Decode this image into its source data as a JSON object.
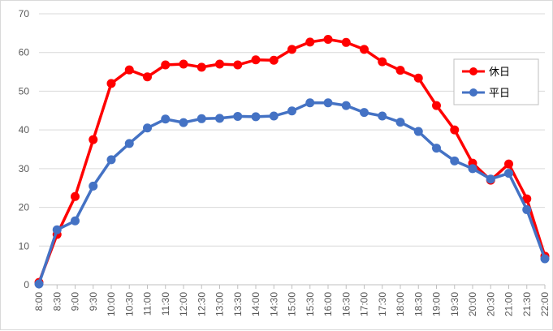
{
  "chart_data": {
    "type": "line",
    "title": "",
    "xlabel": "",
    "ylabel": "",
    "ylim": [
      0,
      70
    ],
    "yticks": [
      0,
      10,
      20,
      30,
      40,
      50,
      60,
      70
    ],
    "grid": "horizontal",
    "legend_position": "right",
    "x": [
      "8:00",
      "8:30",
      "9:00",
      "9:30",
      "10:00",
      "10:30",
      "11:00",
      "11:30",
      "12:00",
      "12:30",
      "13:00",
      "13:30",
      "14:00",
      "14:30",
      "15:00",
      "15:30",
      "16:00",
      "16:30",
      "17:00",
      "17:30",
      "18:00",
      "18:30",
      "19:00",
      "19:30",
      "20:00",
      "20:30",
      "21:00",
      "21:30",
      "22:00"
    ],
    "series": [
      {
        "name": "休日",
        "color": "#ff0000",
        "values": [
          0.6,
          13.0,
          22.8,
          37.5,
          52.0,
          55.5,
          53.7,
          56.8,
          57.0,
          56.2,
          57.0,
          56.8,
          58.1,
          58.0,
          60.8,
          62.7,
          63.4,
          62.6,
          60.8,
          57.6,
          55.4,
          53.4,
          46.3,
          40.0,
          31.4,
          27.0,
          31.2,
          22.2,
          7.4
        ]
      },
      {
        "name": "平日",
        "color": "#4472c4",
        "values": [
          0.2,
          14.2,
          16.5,
          25.5,
          32.3,
          36.5,
          40.5,
          42.8,
          41.9,
          42.9,
          43.0,
          43.5,
          43.4,
          43.6,
          44.9,
          47.0,
          47.0,
          46.3,
          44.5,
          43.6,
          42.0,
          39.6,
          35.3,
          32.0,
          30.0,
          27.3,
          28.8,
          19.4,
          6.7
        ]
      }
    ]
  }
}
